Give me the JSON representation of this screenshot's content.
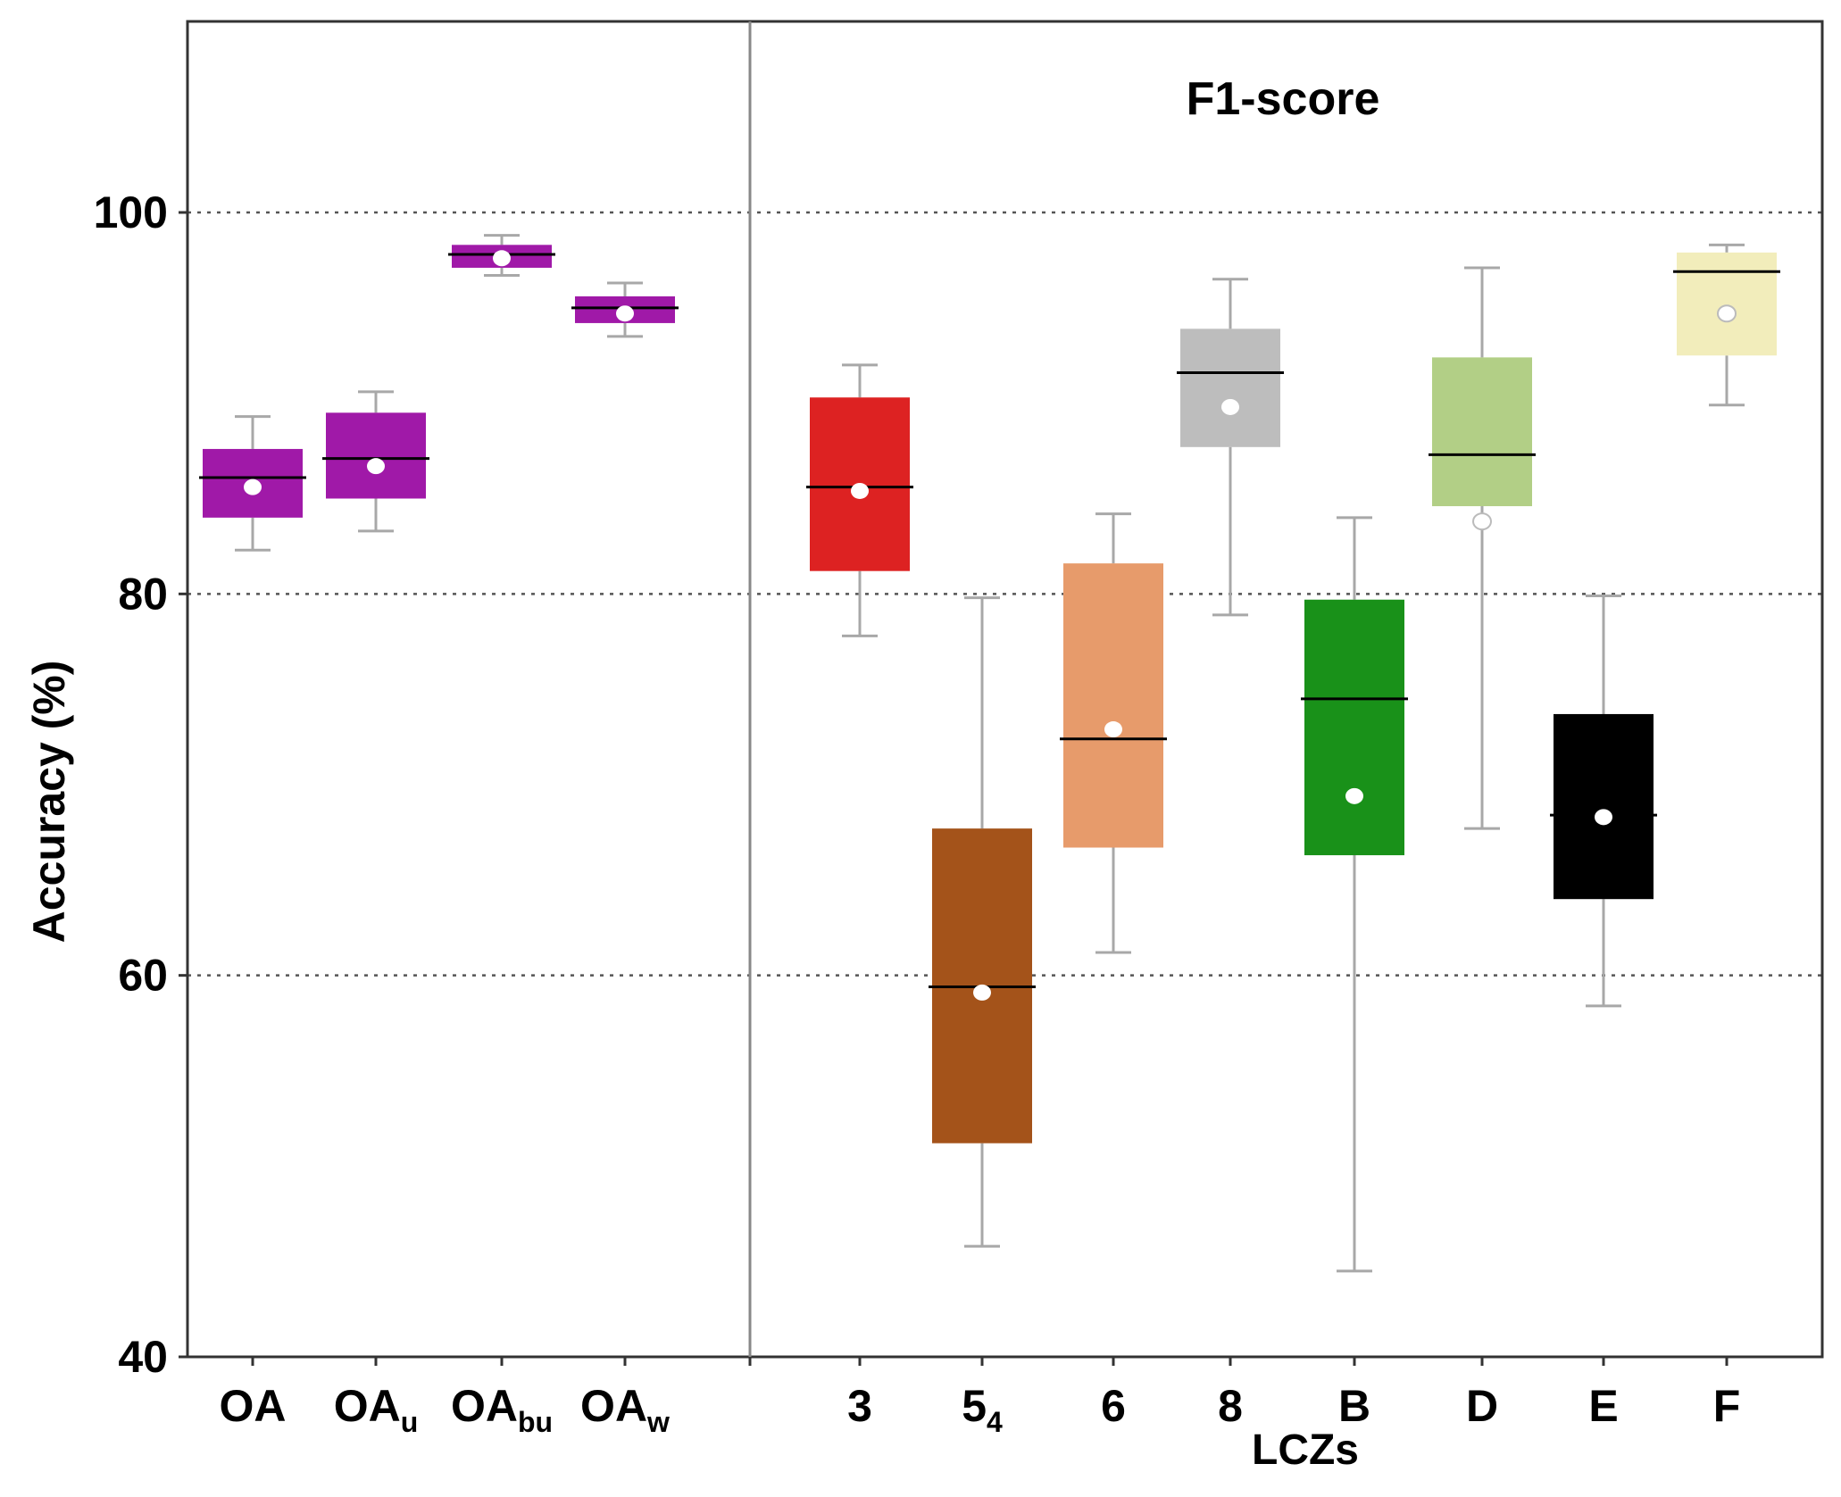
{
  "chart_data": {
    "type": "boxplot",
    "title": "F1-score",
    "xlabel": "LCZs",
    "ylabel": "Accuracy (%)",
    "ylim": [
      40,
      110
    ],
    "yticks": [
      40,
      60,
      80,
      100
    ],
    "grid": "horizontal dotted",
    "categories": [
      {
        "label": "OA",
        "sub": "",
        "group": "overall"
      },
      {
        "label": "OA",
        "sub": "u",
        "group": "overall"
      },
      {
        "label": "OA",
        "sub": "bu",
        "group": "overall"
      },
      {
        "label": "OA",
        "sub": "w",
        "group": "overall"
      },
      {
        "label": "3",
        "sub": "",
        "group": "lcz"
      },
      {
        "label": "5",
        "sub": "4",
        "group": "lcz"
      },
      {
        "label": "6",
        "sub": "",
        "group": "lcz"
      },
      {
        "label": "8",
        "sub": "",
        "group": "lcz"
      },
      {
        "label": "B",
        "sub": "",
        "group": "lcz"
      },
      {
        "label": "D",
        "sub": "",
        "group": "lcz"
      },
      {
        "label": "E",
        "sub": "",
        "group": "lcz"
      },
      {
        "label": "F",
        "sub": "",
        "group": "lcz"
      }
    ],
    "boxes": [
      {
        "name": "OA",
        "min": 82.3,
        "q1": 84.0,
        "median": 86.1,
        "q3": 87.6,
        "max": 89.3,
        "mean": 85.6,
        "color": "#a019a8"
      },
      {
        "name": "OAu",
        "min": 83.3,
        "q1": 85.0,
        "median": 87.1,
        "q3": 89.5,
        "max": 90.6,
        "mean": 86.7,
        "color": "#a019a8"
      },
      {
        "name": "OAbu",
        "min": 96.7,
        "q1": 97.1,
        "median": 97.8,
        "q3": 98.3,
        "max": 98.8,
        "mean": 97.6,
        "color": "#a019a8"
      },
      {
        "name": "OAw",
        "min": 93.5,
        "q1": 94.2,
        "median": 95.0,
        "q3": 95.6,
        "max": 96.3,
        "mean": 94.7,
        "color": "#a019a8"
      },
      {
        "name": "3",
        "min": 77.8,
        "q1": 81.2,
        "median": 85.6,
        "q3": 90.3,
        "max": 92.0,
        "mean": 85.4,
        "color": "#dd2222"
      },
      {
        "name": "54",
        "min": 45.8,
        "q1": 51.2,
        "median": 59.4,
        "q3": 67.7,
        "max": 79.8,
        "mean": 59.1,
        "color": "#a4531a"
      },
      {
        "name": "6",
        "min": 61.2,
        "q1": 66.7,
        "median": 72.4,
        "q3": 81.6,
        "max": 84.2,
        "mean": 72.9,
        "color": "#e79b6b"
      },
      {
        "name": "8",
        "min": 78.9,
        "q1": 87.7,
        "median": 91.6,
        "q3": 93.9,
        "max": 96.5,
        "mean": 89.8,
        "color": "#bdbdbd"
      },
      {
        "name": "B",
        "min": 44.5,
        "q1": 66.3,
        "median": 74.5,
        "q3": 79.7,
        "max": 84.0,
        "mean": 69.4,
        "color": "#199119"
      },
      {
        "name": "D",
        "min": 67.7,
        "q1": 84.6,
        "median": 87.3,
        "q3": 92.4,
        "max": 97.1,
        "mean": 83.8,
        "color": "#b2cf86"
      },
      {
        "name": "E",
        "min": 58.4,
        "q1": 64.0,
        "median": 68.4,
        "q3": 73.7,
        "max": 79.9,
        "mean": 68.3,
        "color": "#000000"
      },
      {
        "name": "F",
        "min": 89.9,
        "q1": 92.5,
        "median": 96.9,
        "q3": 97.9,
        "max": 98.3,
        "mean": 94.7,
        "color": "#f2edbb"
      }
    ]
  }
}
